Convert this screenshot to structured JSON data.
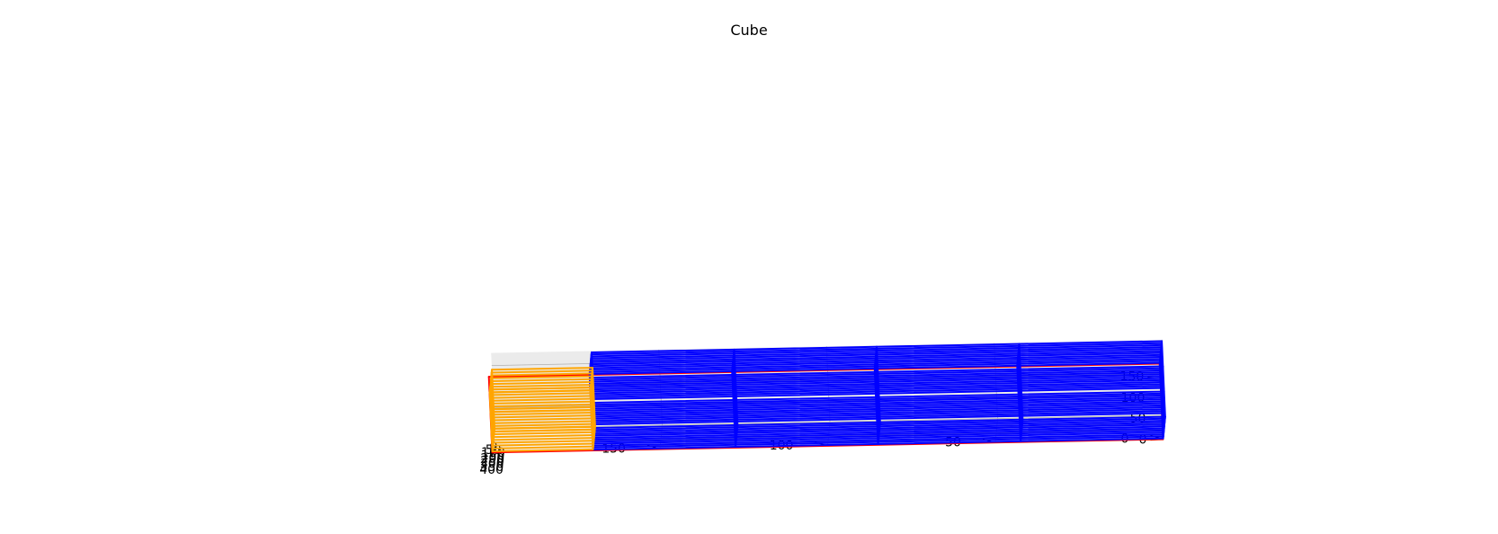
{
  "chart_data": {
    "type": "3d-wireframe",
    "title": "Cube",
    "xlabel": "",
    "ylabel": "",
    "zlabel": "",
    "grid": true,
    "xlim": [
      0,
      420
    ],
    "ylim": [
      0,
      200
    ],
    "zlim": [
      0,
      180
    ],
    "x_ticks": [
      400,
      350,
      300,
      250,
      200,
      150,
      100,
      50,
      0
    ],
    "y_ticks": [
      0,
      50,
      100,
      150
    ],
    "z_ticks": [
      0,
      50,
      100,
      150
    ],
    "boxes": [
      {
        "color": "#ff0000",
        "x": [
          420,
          420
        ],
        "y": [
          0,
          200
        ],
        "z": [
          0,
          180
        ],
        "divisions": [
          1,
          1,
          1
        ]
      },
      {
        "color": "#0000ff",
        "x": [
          25,
          405
        ],
        "y": [
          0,
          170
        ],
        "z": [
          0,
          180
        ],
        "divisions": [
          11,
          4,
          3
        ]
      },
      {
        "color": "#ffa500",
        "x": [
          0,
          400
        ],
        "y": [
          170,
          200
        ],
        "z": [
          0,
          140
        ],
        "divisions": [
          8,
          1,
          3
        ]
      }
    ]
  }
}
